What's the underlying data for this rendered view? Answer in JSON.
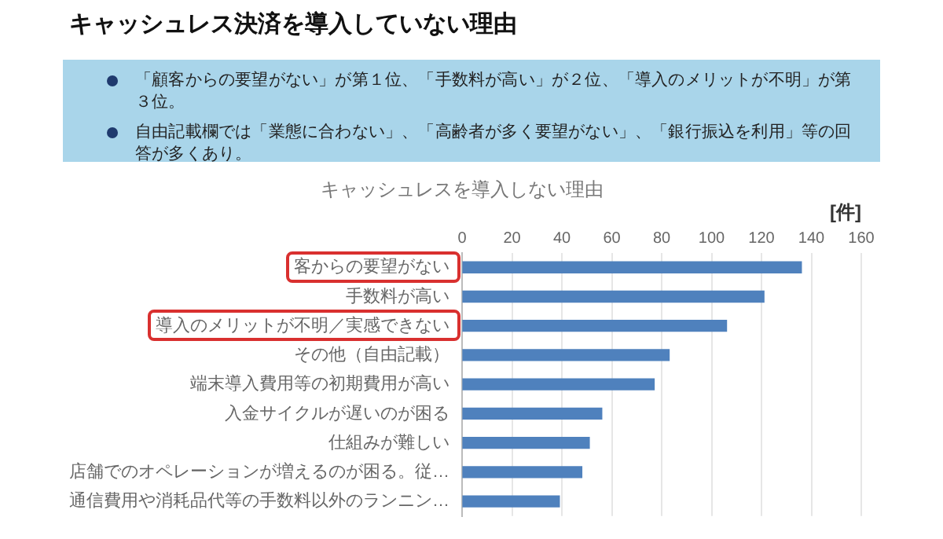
{
  "chart_data": {
    "type": "bar",
    "orientation": "horizontal",
    "title": "キャッシュレス決済を導入していない理由",
    "subtitle": "キャッシュレスを導入しない理由",
    "xlabel": "[件]",
    "annotations": [
      "「顧客からの要望がない」が第１位、「手数料が高い」が２位、「導入のメリットが不明」が第３位。",
      "自由記載欄では「業態に合わない」、「高齢者が多く要望がない」、「銀行振込を利用」等の回答が多くあり。"
    ],
    "categories": [
      "客からの要望がない",
      "手数料が高い",
      "導入のメリットが不明／実感できない",
      "その他（自由記載）",
      "端末導入費用等の初期費用が高い",
      "入金サイクルが遅いのが困る",
      "仕組みが難しい",
      "店舗でのオペレーションが増えるのが困る。従…",
      "通信費用や消耗品代等の手数料以外のランニン…"
    ],
    "values": [
      136,
      121,
      106,
      83,
      77,
      56,
      51,
      48,
      39
    ],
    "color": "#4f81bd",
    "xlim": [
      0,
      160
    ],
    "xticks": [
      0,
      20,
      40,
      60,
      80,
      100,
      120,
      140,
      160
    ],
    "grid": "x"
  }
}
